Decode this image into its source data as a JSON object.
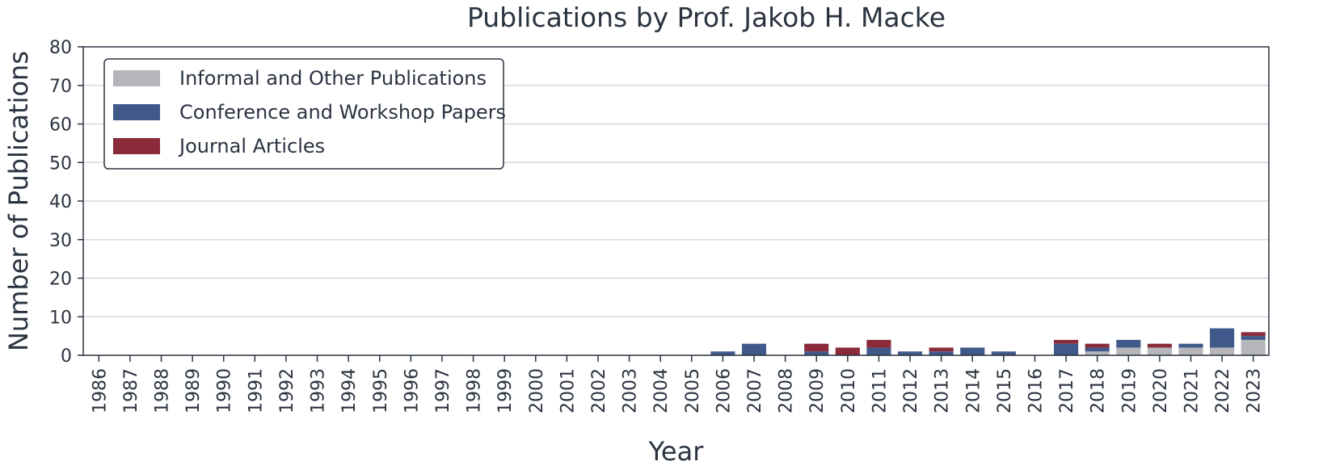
{
  "chart_data": {
    "type": "bar",
    "stacked": true,
    "title": "Publications by Prof. Jakob H. Macke",
    "xlabel": "Year",
    "ylabel": "Number of Publications",
    "ylim": [
      0,
      80
    ],
    "yticks": [
      0,
      10,
      20,
      30,
      40,
      50,
      60,
      70,
      80
    ],
    "grid": "horizontal",
    "legend_position": "top-left",
    "categories": [
      "1986",
      "1987",
      "1988",
      "1989",
      "1990",
      "1991",
      "1992",
      "1993",
      "1994",
      "1995",
      "1996",
      "1997",
      "1998",
      "1999",
      "2000",
      "2001",
      "2002",
      "2003",
      "2004",
      "2005",
      "2006",
      "2007",
      "2008",
      "2009",
      "2010",
      "2011",
      "2012",
      "2013",
      "2014",
      "2015",
      "2016",
      "2017",
      "2018",
      "2019",
      "2020",
      "2021",
      "2022",
      "2023"
    ],
    "series": [
      {
        "name": "Informal and Other Publications",
        "color": "#b4b6ba",
        "values": [
          0,
          0,
          0,
          0,
          0,
          0,
          0,
          0,
          0,
          0,
          0,
          0,
          0,
          0,
          0,
          0,
          0,
          0,
          0,
          0,
          0,
          0,
          0,
          0,
          0,
          0,
          0,
          0,
          0,
          0,
          0,
          0,
          1,
          2,
          2,
          2,
          2,
          4
        ]
      },
      {
        "name": "Conference and Workshop Papers",
        "color": "#3f5a8a",
        "values": [
          0,
          0,
          0,
          0,
          0,
          0,
          0,
          0,
          0,
          0,
          0,
          0,
          0,
          0,
          0,
          0,
          0,
          0,
          0,
          0,
          1,
          3,
          0,
          1,
          0,
          2,
          1,
          1,
          2,
          1,
          0,
          3,
          1,
          2,
          0,
          1,
          5,
          1
        ]
      },
      {
        "name": "Journal Articles",
        "color": "#8b2b3a",
        "values": [
          0,
          0,
          0,
          0,
          0,
          0,
          0,
          0,
          0,
          0,
          0,
          0,
          0,
          0,
          0,
          0,
          0,
          0,
          0,
          0,
          0,
          0,
          0,
          2,
          2,
          2,
          0,
          1,
          0,
          0,
          0,
          1,
          1,
          0,
          1,
          0,
          0,
          1
        ]
      }
    ]
  }
}
